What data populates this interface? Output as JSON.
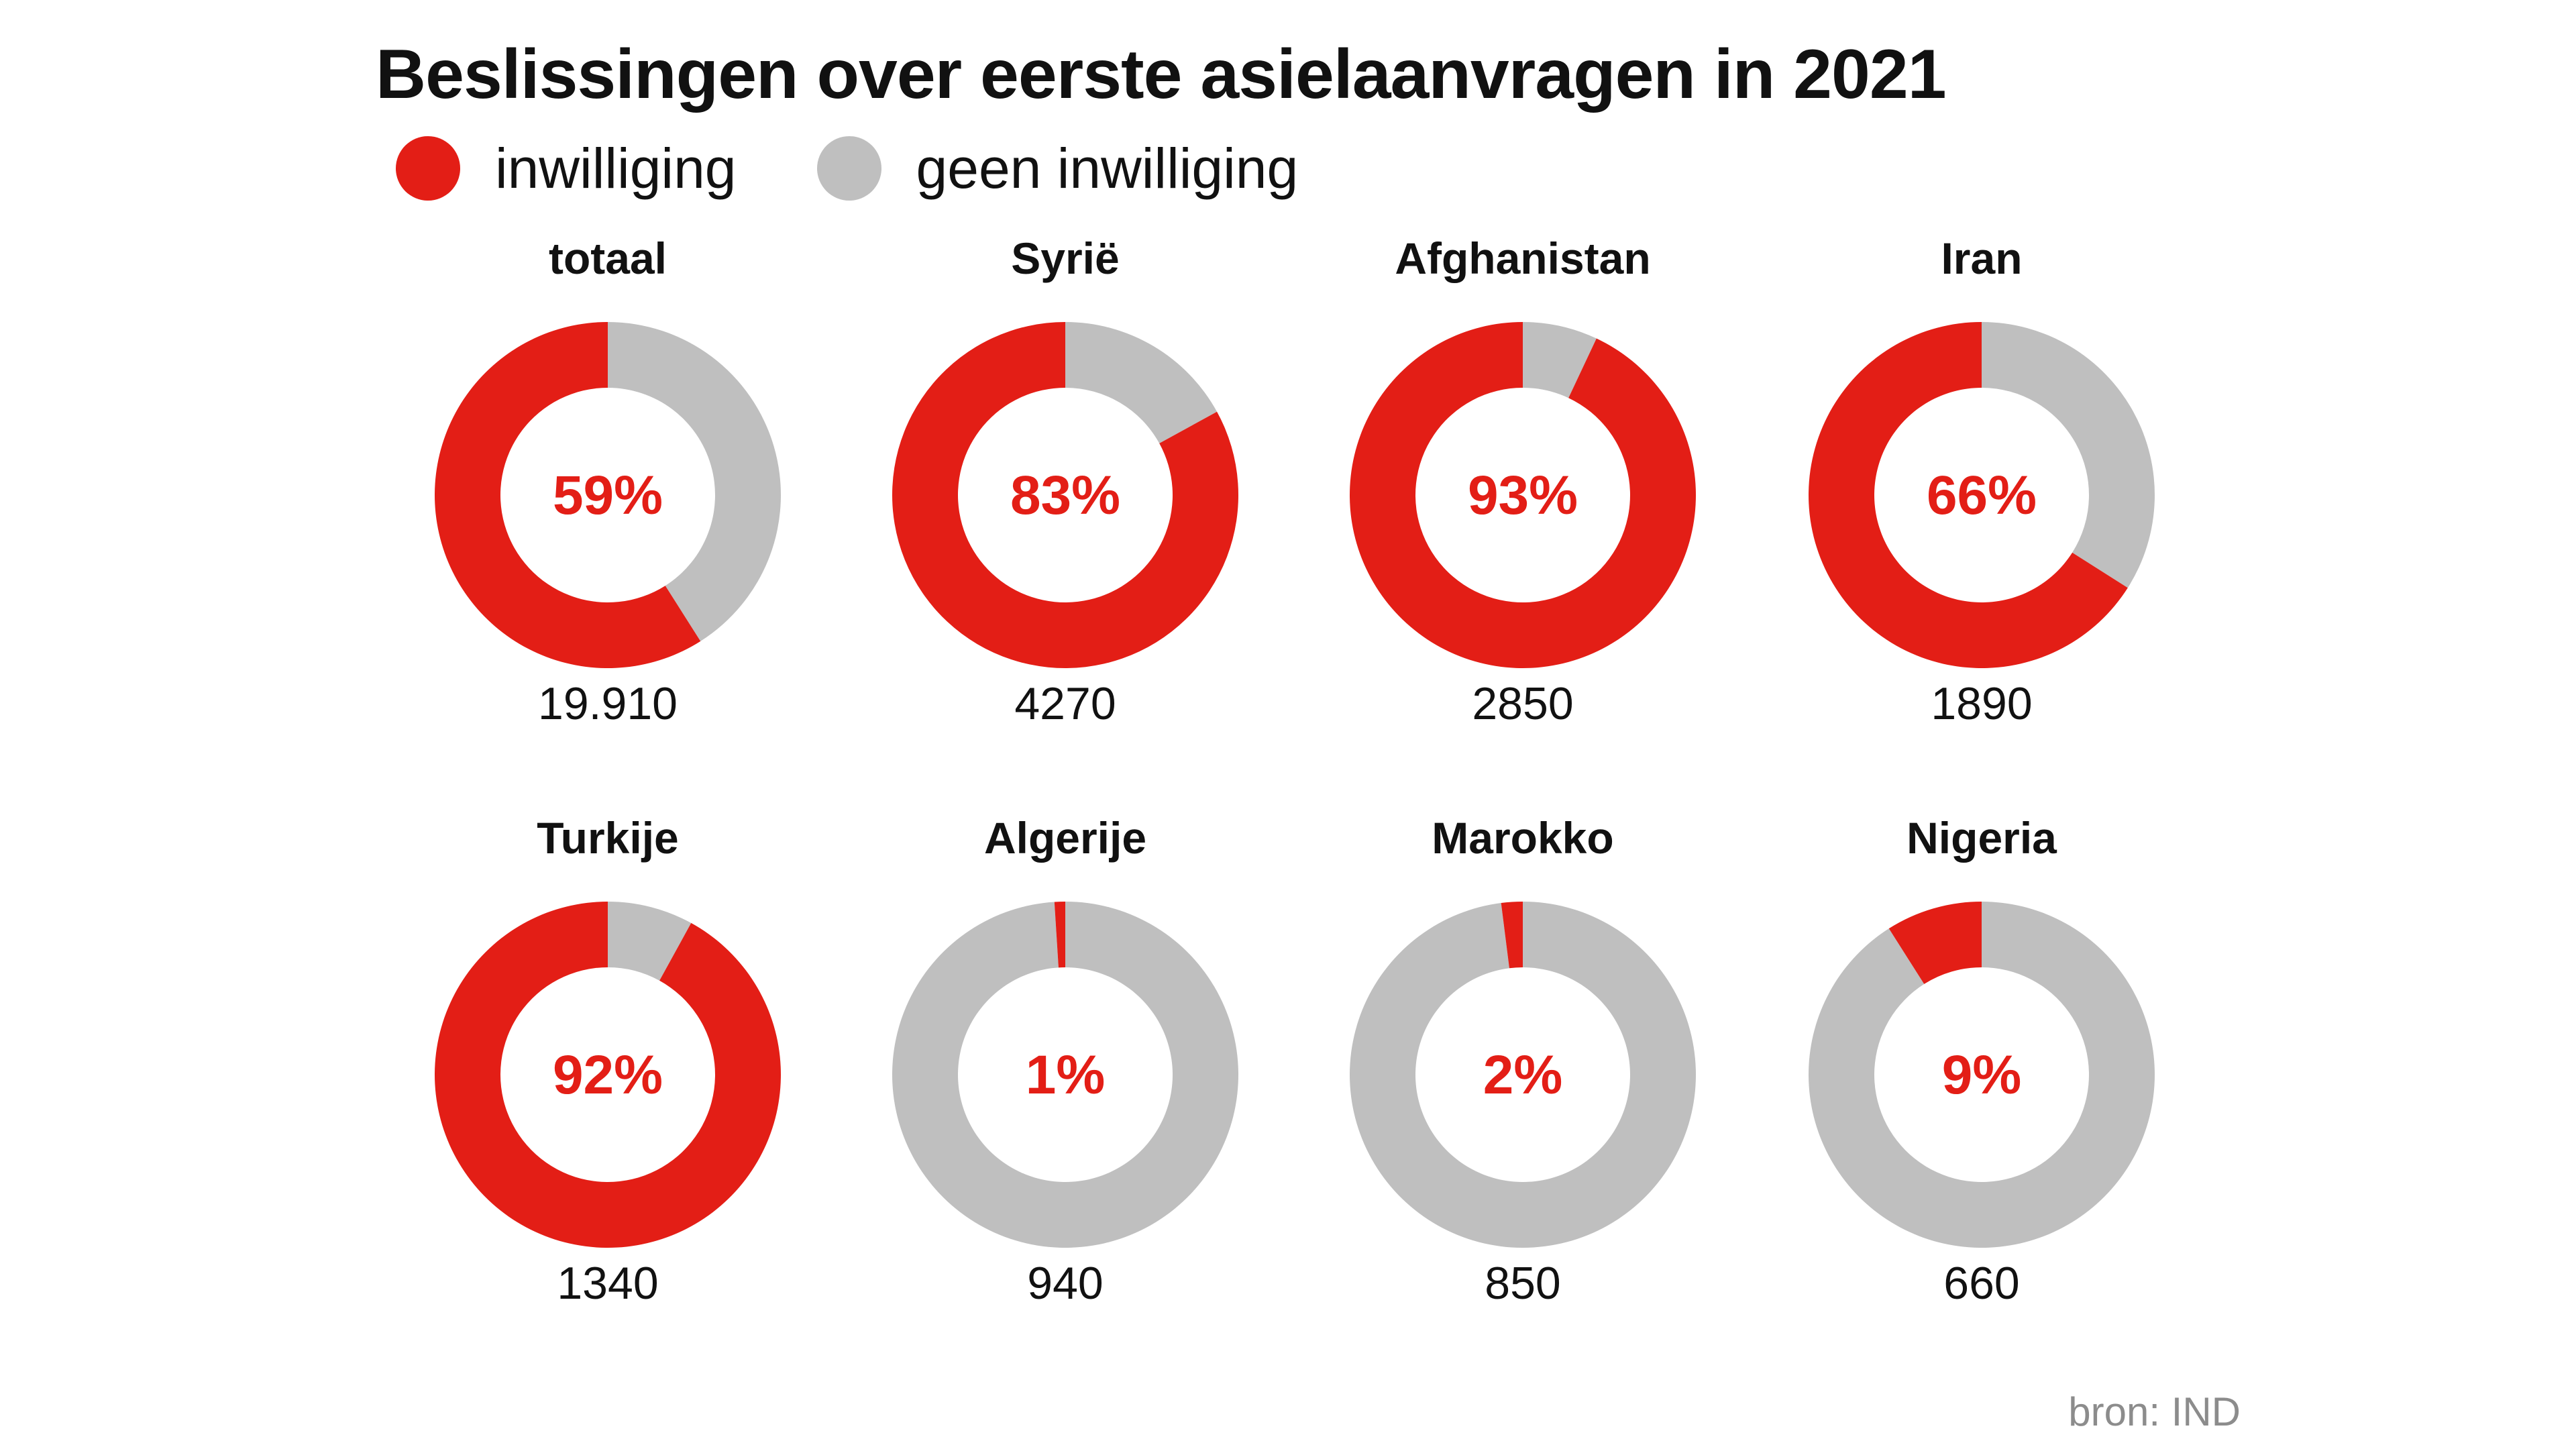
{
  "chart_data": {
    "type": "pie",
    "subtype": "donut-small-multiples",
    "title": "Beslissingen over eerste asielaanvragen in 2021",
    "legend": [
      {
        "label": "inwilliging",
        "color": "#e31e16"
      },
      {
        "label": "geen inwilliging",
        "color": "#bfbfbf"
      }
    ],
    "legend_position": "top-left",
    "panels": [
      {
        "name": "totaal",
        "granted_pct": 59,
        "label": "59%",
        "total": "19.910"
      },
      {
        "name": "Syrië",
        "granted_pct": 83,
        "label": "83%",
        "total": "4270"
      },
      {
        "name": "Afghanistan",
        "granted_pct": 93,
        "label": "93%",
        "total": "2850"
      },
      {
        "name": "Iran",
        "granted_pct": 66,
        "label": "66%",
        "total": "1890"
      },
      {
        "name": "Turkije",
        "granted_pct": 92,
        "label": "92%",
        "total": "1340"
      },
      {
        "name": "Algerije",
        "granted_pct": 1,
        "label": "1%",
        "total": "940"
      },
      {
        "name": "Marokko",
        "granted_pct": 2,
        "label": "2%",
        "total": "850"
      },
      {
        "name": "Nigeria",
        "granted_pct": 9,
        "label": "9%",
        "total": "660"
      }
    ],
    "source": "bron: IND"
  },
  "colors": {
    "granted": "#e31e16",
    "not_granted": "#bfbfbf",
    "source_text": "#8c8c8c",
    "text": "#111111"
  }
}
